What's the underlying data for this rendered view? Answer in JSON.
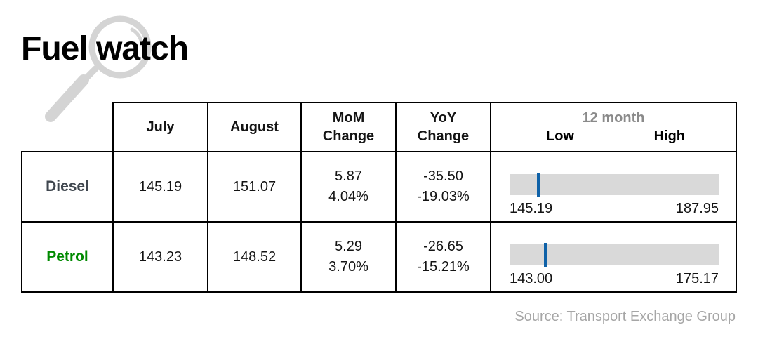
{
  "title": "Fuel watch",
  "icons": {
    "title_icon": "magnifying-glass"
  },
  "header": {
    "july": "July",
    "august": "August",
    "mom": "MoM\nChange",
    "yoy": "YoY\nChange",
    "month12": "12 month",
    "low": "Low",
    "high": "High"
  },
  "rows": [
    {
      "label": "Diesel",
      "july": "145.19",
      "august": "151.07",
      "mom": "5.87",
      "mom_pct": "4.04%",
      "yoy": "-35.50",
      "yoy_pct": "-19.03%",
      "low": "145.19",
      "high": "187.95"
    },
    {
      "label": "Petrol",
      "july": "143.23",
      "august": "148.52",
      "mom": "5.29",
      "mom_pct": "3.70%",
      "yoy": "-26.65",
      "yoy_pct": "-15.21%",
      "low": "143.00",
      "high": "175.17"
    }
  ],
  "source": "Source: Transport Exchange Group",
  "colors": {
    "diesel_label": "#40474f",
    "petrol_label": "#008a00",
    "marker_blue": "#0f62a8",
    "bar_gray": "#d9d9d9",
    "muted_gray": "#8a8a8a",
    "source_gray": "#a6a6a6",
    "magnifier_gray": "#d4d4d4",
    "border_black": "#000000"
  },
  "chart_data": {
    "type": "table",
    "title": "Fuel watch",
    "columns": [
      "",
      "July",
      "August",
      "MoM Change",
      "YoY Change",
      "12 month Low",
      "12 month High"
    ],
    "rows": [
      {
        "label": "Diesel",
        "july": 145.19,
        "august": 151.07,
        "mom_change": 5.87,
        "mom_change_pct": 4.04,
        "yoy_change": -35.5,
        "yoy_change_pct": -19.03,
        "low_12m": 145.19,
        "high_12m": 187.95,
        "marker_value": 151.07
      },
      {
        "label": "Petrol",
        "july": 143.23,
        "august": 148.52,
        "mom_change": 5.29,
        "mom_change_pct": 3.7,
        "yoy_change": -26.65,
        "yoy_change_pct": -15.21,
        "low_12m": 143.0,
        "high_12m": 175.17,
        "marker_value": 148.52
      }
    ],
    "range_bar": {
      "style": "horizontal-range",
      "marker_is": "august price",
      "bar_color": "#d9d9d9",
      "marker_color": "#0f62a8"
    },
    "source": "Source: Transport Exchange Group",
    "legend": false,
    "grid": false
  }
}
